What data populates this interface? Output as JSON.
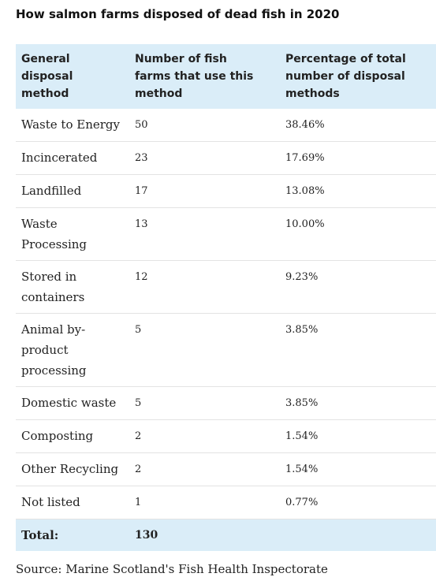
{
  "title": "How salmon farms disposed of dead fish in 2020",
  "colors": {
    "header_background": "#daedf8",
    "total_background": "#daedf8",
    "row_divider": "#e3e3e3"
  },
  "chart_data": {
    "type": "table",
    "title": "How salmon farms disposed of dead fish in 2020",
    "columns": [
      [
        "General",
        "disposal",
        "method"
      ],
      [
        "Number of fish",
        "farms that use this",
        "method"
      ],
      [
        "Percentage of total",
        "number of disposal",
        "methods"
      ]
    ],
    "rows": [
      {
        "method": [
          "Waste to Energy"
        ],
        "farms": "50",
        "percentage": "38.46%"
      },
      {
        "method": [
          "Incincerated"
        ],
        "farms": "23",
        "percentage": "17.69%"
      },
      {
        "method": [
          "Landfilled"
        ],
        "farms": "17",
        "percentage": "13.08%"
      },
      {
        "method": [
          "Waste",
          "Processing"
        ],
        "farms": "13",
        "percentage": "10.00%"
      },
      {
        "method": [
          "Stored in",
          "containers"
        ],
        "farms": "12",
        "percentage": "9.23%"
      },
      {
        "method": [
          "Animal by-",
          "product",
          "processing"
        ],
        "farms": "5",
        "percentage": "3.85%"
      },
      {
        "method": [
          "Domestic waste"
        ],
        "farms": "5",
        "percentage": "3.85%"
      },
      {
        "method": [
          "Composting"
        ],
        "farms": "2",
        "percentage": "1.54%"
      },
      {
        "method": [
          "Other Recycling"
        ],
        "farms": "2",
        "percentage": "1.54%"
      },
      {
        "method": [
          "Not listed"
        ],
        "farms": "1",
        "percentage": "0.77%"
      }
    ],
    "total": {
      "label": "Total:",
      "farms": "130",
      "percentage": ""
    }
  },
  "source": "Source: Marine Scotland's Fish Health Inspectorate"
}
